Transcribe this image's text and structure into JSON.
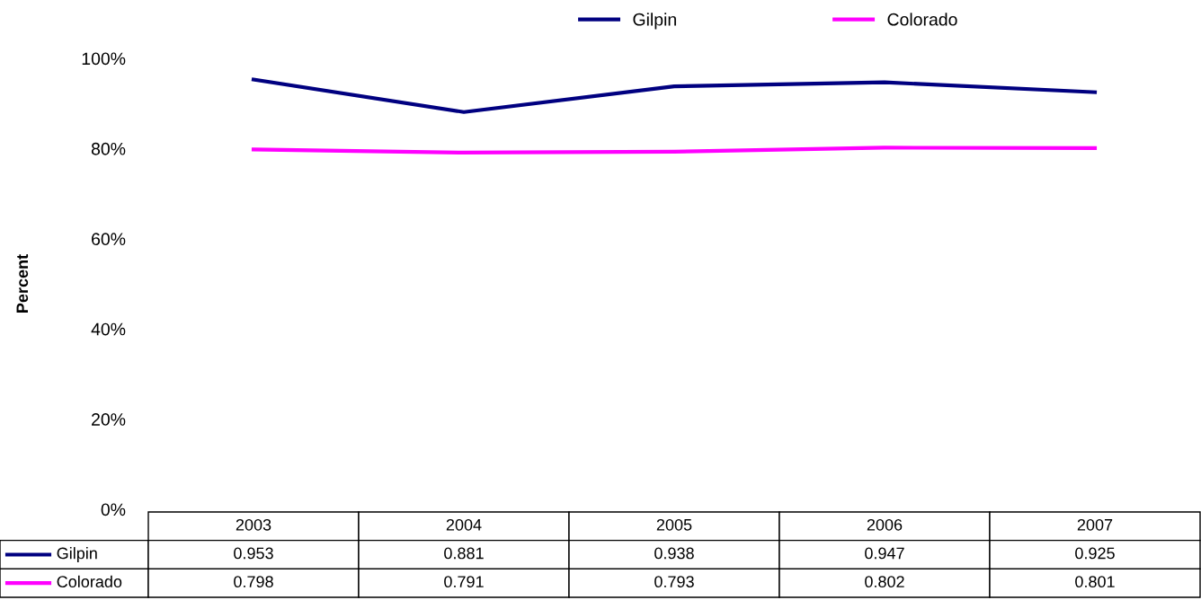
{
  "chart_data": {
    "type": "line",
    "ylabel": "Percent",
    "categories": [
      "2003",
      "2004",
      "2005",
      "2006",
      "2007"
    ],
    "series": [
      {
        "name": "Gilpin",
        "color": "#000080",
        "values": [
          0.953,
          0.881,
          0.938,
          0.947,
          0.925
        ]
      },
      {
        "name": "Colorado",
        "color": "#ff00ff",
        "values": [
          0.798,
          0.791,
          0.793,
          0.802,
          0.801
        ]
      }
    ],
    "ylim": [
      0,
      1
    ],
    "yticks": [
      {
        "value": 0,
        "label": "0%"
      },
      {
        "value": 0.2,
        "label": "20%"
      },
      {
        "value": 0.4,
        "label": "40%"
      },
      {
        "value": 0.6,
        "label": "60%"
      },
      {
        "value": 0.8,
        "label": "80%"
      },
      {
        "value": 1,
        "label": "100%"
      }
    ],
    "tick_labels": "y",
    "grid": false,
    "legend": "top",
    "marker": "none",
    "line_style": "solid",
    "data_labels": true
  }
}
